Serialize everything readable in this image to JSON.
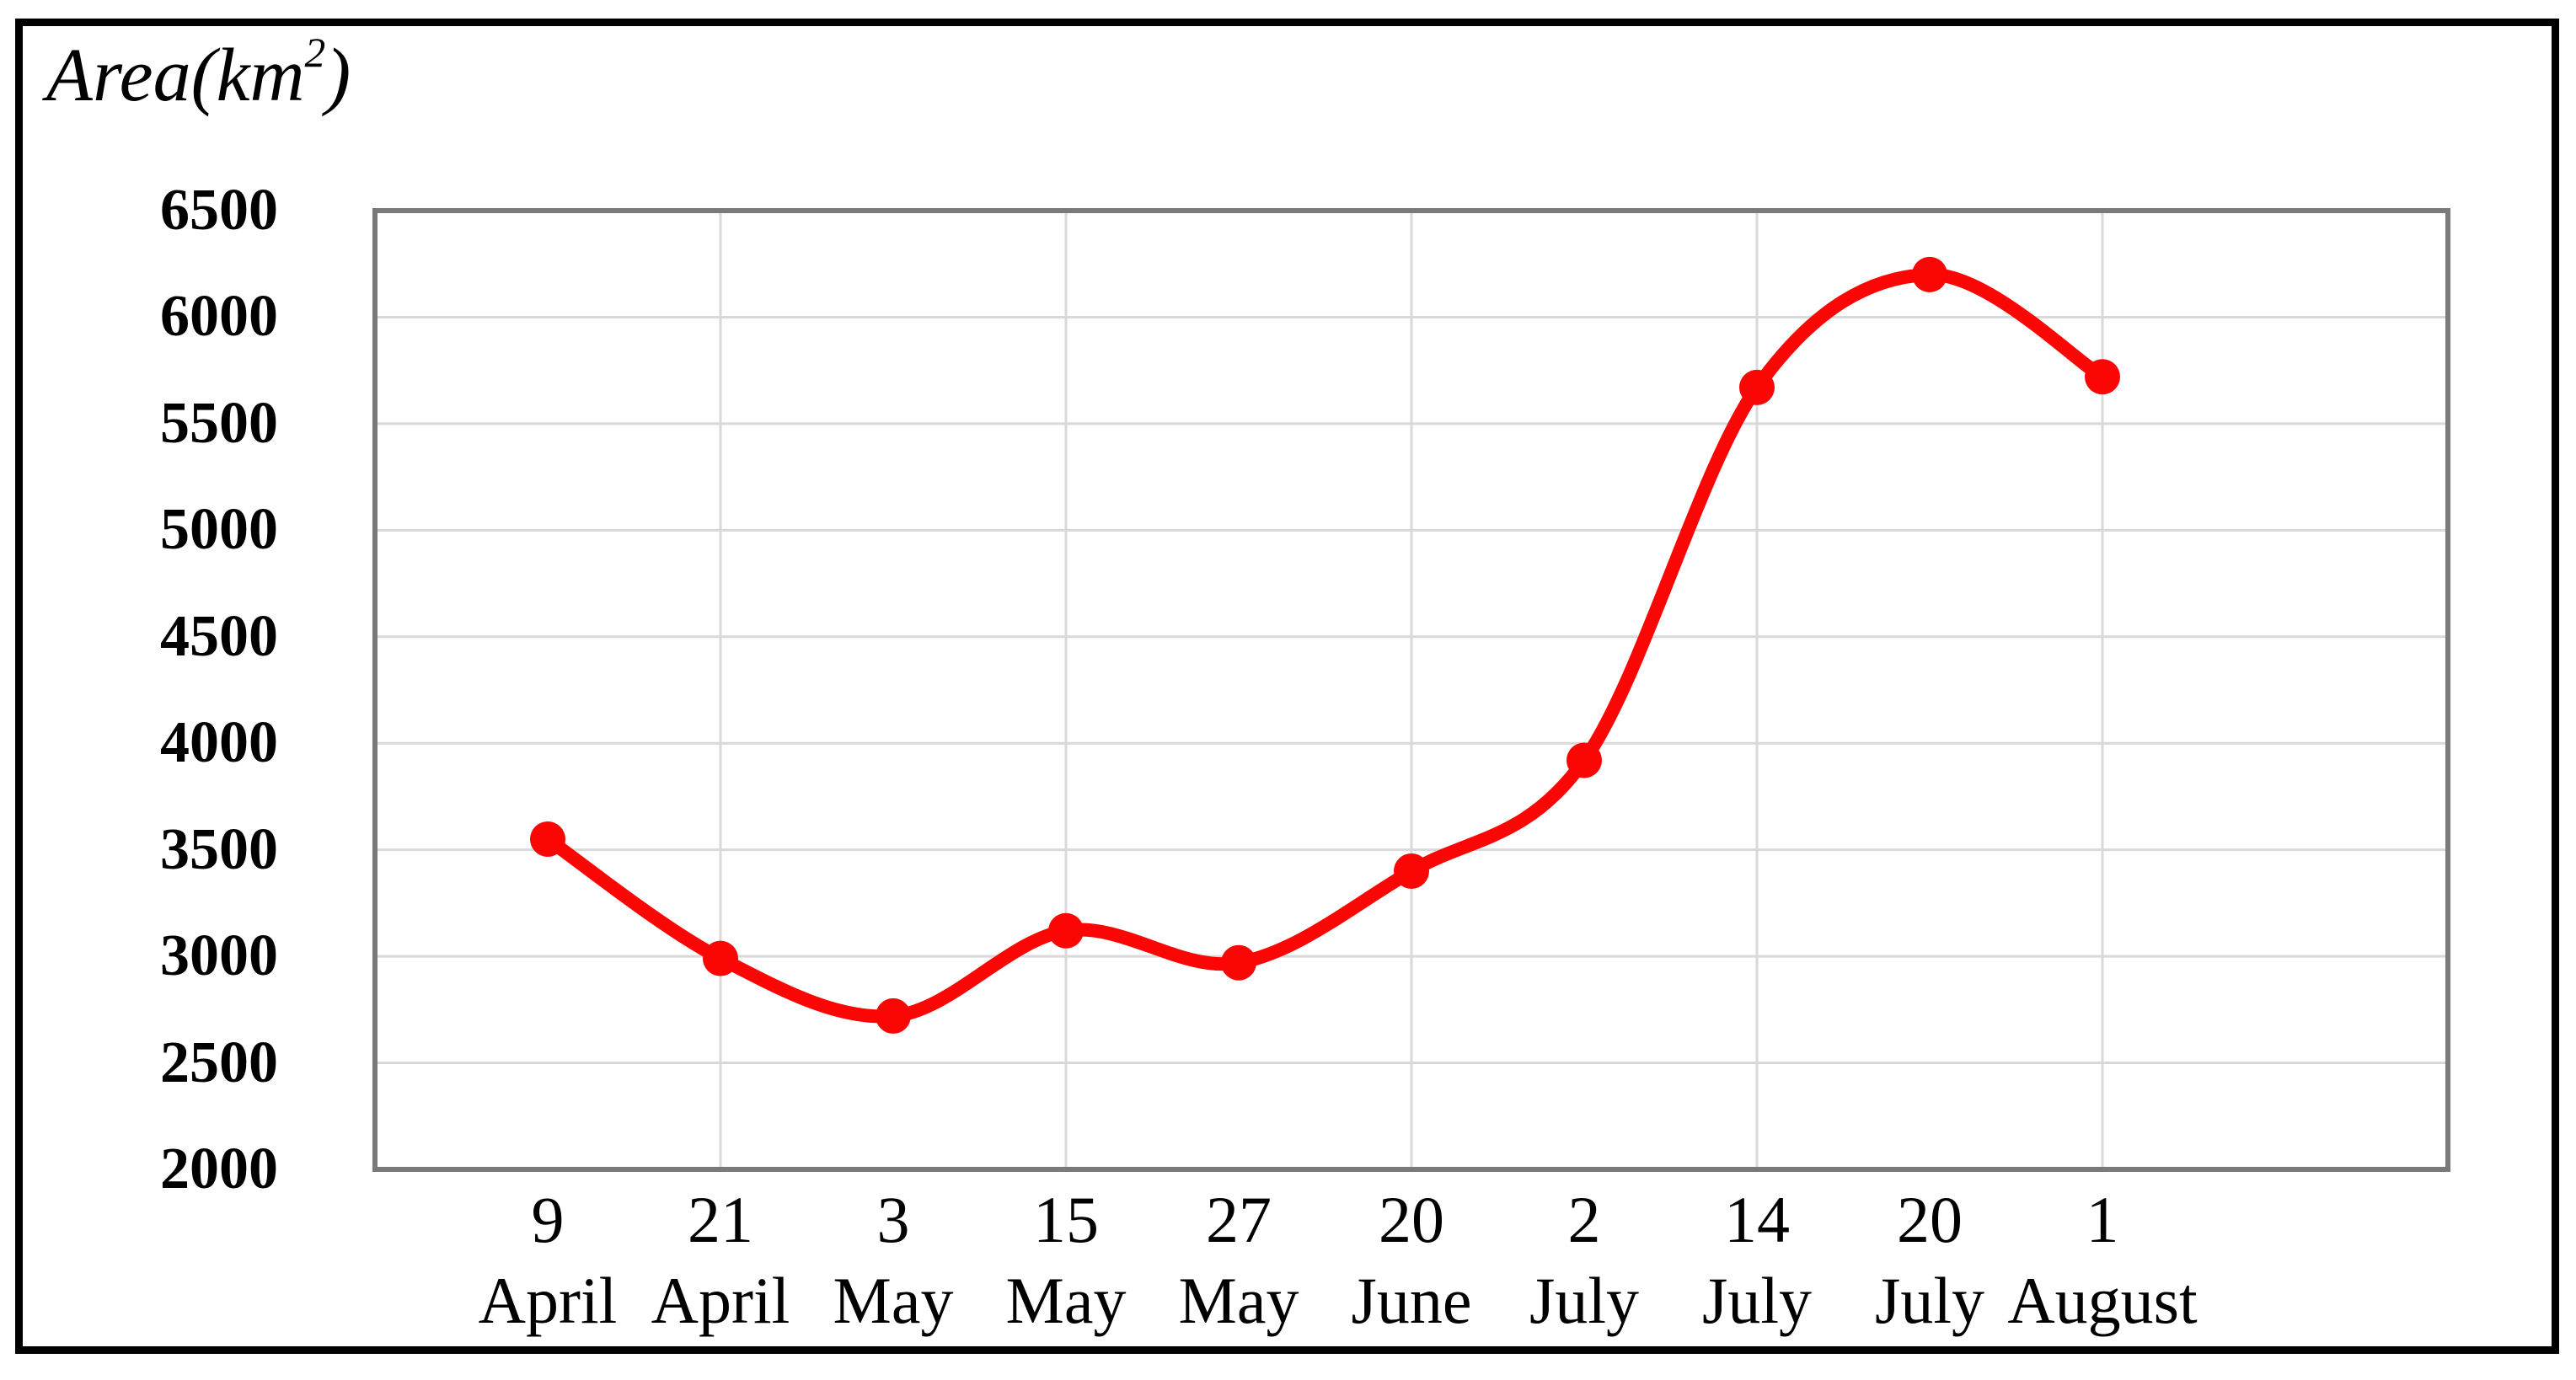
{
  "figure": {
    "title_parts": {
      "prefix": "Area(km",
      "superscript": "2",
      "suffix": ")"
    },
    "colors": {
      "line": "#fb0505",
      "gridline": "#d9d9d9",
      "plot_border": "#7a7a7a",
      "frame_border": "#000000",
      "text": "#000000"
    }
  },
  "chart_data": {
    "type": "line",
    "title": "Area(km²)",
    "ylabel": "Area(km²)",
    "xlabel": "",
    "legend": "none",
    "line_style": "smooth",
    "marker": "circle",
    "grid": "horizontal major gridlines; vertical gridlines at every 2nd category",
    "ylim": [
      2000,
      6500
    ],
    "y_major_unit": 500,
    "y_ticks": [
      6500,
      6000,
      5500,
      5000,
      4500,
      4000,
      3500,
      3000,
      2500,
      2000
    ],
    "categories": [
      "9 April",
      "21 April",
      "3 May",
      "15 May",
      "27 May",
      "20 June",
      "2 July",
      "14 July",
      "20 July",
      "1 August"
    ],
    "x_tick_labels": [
      {
        "day": "9",
        "month": "April"
      },
      {
        "day": "21",
        "month": "April"
      },
      {
        "day": "3",
        "month": "May"
      },
      {
        "day": "15",
        "month": "May"
      },
      {
        "day": "27",
        "month": "May"
      },
      {
        "day": "20",
        "month": "June"
      },
      {
        "day": "2",
        "month": "July"
      },
      {
        "day": "14",
        "month": "July"
      },
      {
        "day": "20",
        "month": "July"
      },
      {
        "day": "1",
        "month": "August"
      }
    ],
    "series": [
      {
        "name": "Area (km²)",
        "values": [
          3550,
          2990,
          2720,
          3120,
          2970,
          3400,
          3920,
          5670,
          6200,
          5720
        ]
      }
    ]
  }
}
